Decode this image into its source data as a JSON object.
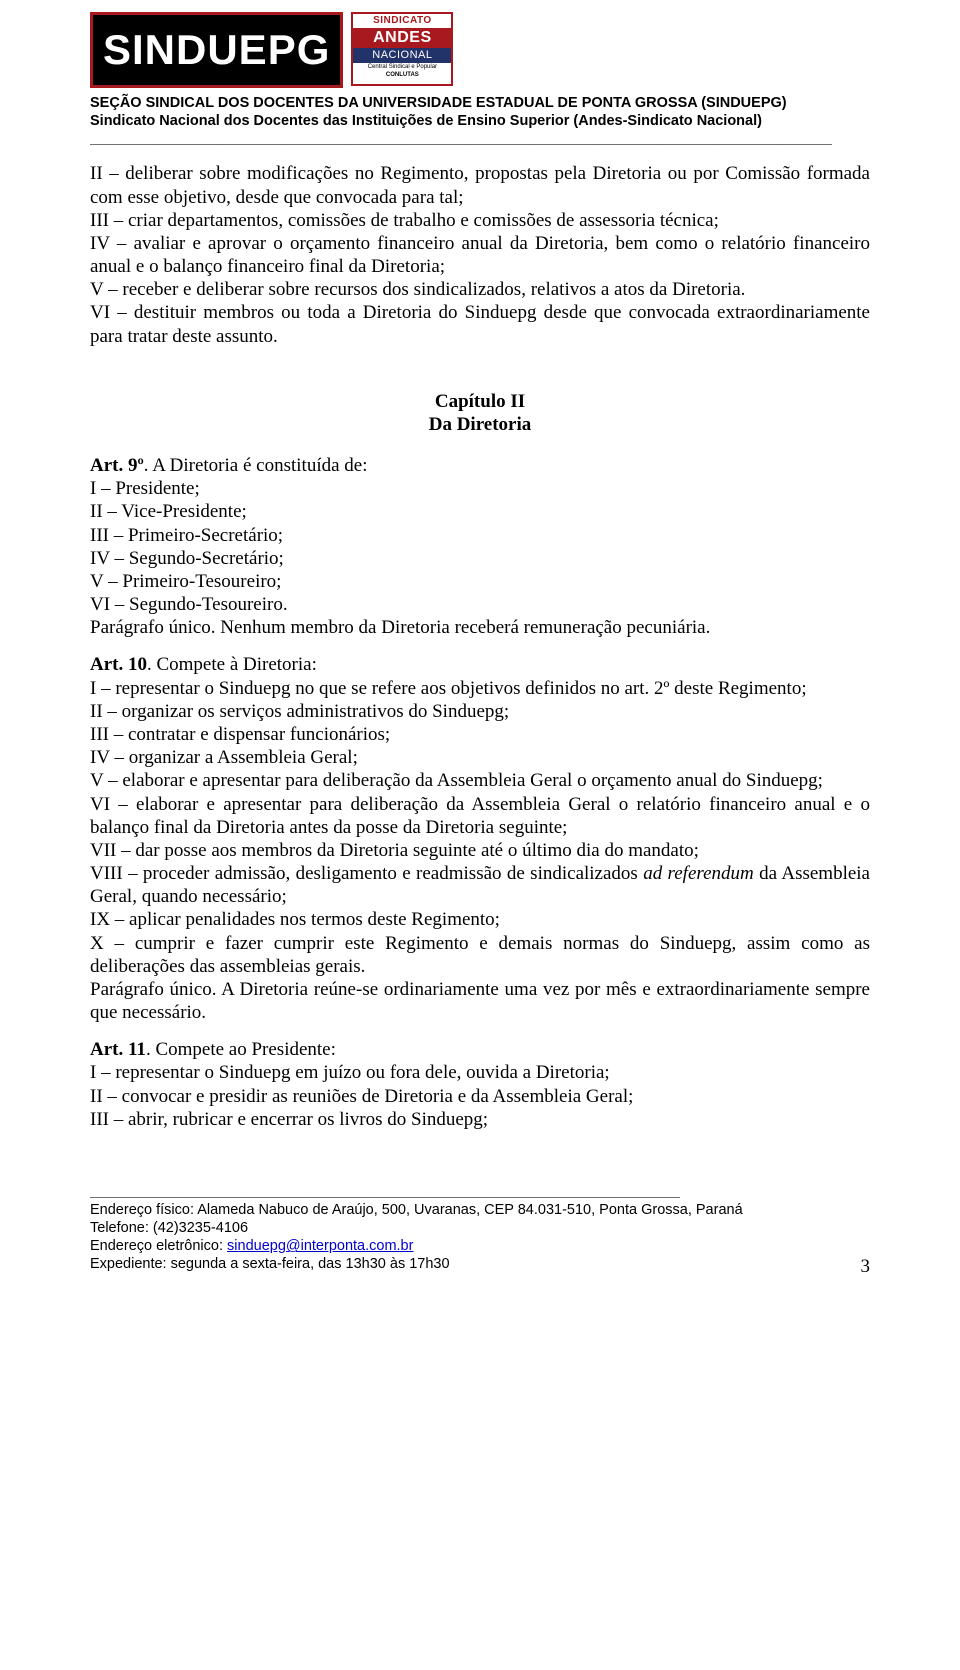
{
  "logos": {
    "sinduepg": "SINDUEPG",
    "andes_top": "SINDICATO",
    "andes_mid": "ANDES",
    "andes_bot": "NACIONAL",
    "andes_sub": "Central Sindical e Popular - CONLUTAS",
    "andes_conlutas": "CONLUTAS"
  },
  "header": {
    "line1": "SEÇÃO SINDICAL DOS DOCENTES DA UNIVERSIDADE ESTADUAL DE PONTA GROSSA (SINDUEPG)",
    "line2": "Sindicato Nacional dos Docentes das Instituições de Ensino Superior (Andes-Sindicato Nacional)",
    "rule": "____________________________________________________________________________________________"
  },
  "section1": {
    "p1": "II – deliberar sobre modificações no Regimento, propostas pela Diretoria ou por Comissão formada com esse objetivo, desde que convocada para tal;",
    "p2": "III – criar departamentos, comissões de trabalho e comissões de assessoria técnica;",
    "p3": "IV – avaliar e aprovar o orçamento financeiro anual da Diretoria, bem como o relatório financeiro anual e o balanço financeiro final da Diretoria;",
    "p4": "V – receber e deliberar sobre recursos dos sindicalizados, relativos a atos da Diretoria.",
    "p5": "VI – destituir membros ou toda a Diretoria do Sinduepg desde que convocada extraordinariamente para tratar deste assunto."
  },
  "chapter": {
    "line1": "Capítulo II",
    "line2": "Da Diretoria"
  },
  "art9": {
    "lead_bold": "Art. 9º",
    "lead_rest": ". A Diretoria é constituída de:",
    "i": "I – Presidente;",
    "ii": "II – Vice-Presidente;",
    "iii": "III – Primeiro-Secretário;",
    "iv": "IV – Segundo-Secretário;",
    "v": "V – Primeiro-Tesoureiro;",
    "vi": "VI – Segundo-Tesoureiro.",
    "paragraf": "Parágrafo único. Nenhum membro da Diretoria receberá remuneração pecuniária."
  },
  "art10": {
    "lead_bold": "Art. 10",
    "lead_rest": ". Compete à Diretoria:",
    "i": "I – representar o Sinduepg no que se refere aos objetivos definidos no art. 2º deste Regimento;",
    "ii": "II – organizar os serviços administrativos do Sinduepg;",
    "iii": "III – contratar e dispensar funcionários;",
    "iv": "IV – organizar a Assembleia Geral;",
    "v": "V – elaborar e apresentar para deliberação da Assembleia Geral o orçamento anual do Sinduepg;",
    "vi": "VI – elaborar e apresentar para deliberação da Assembleia Geral o relatório financeiro anual e o balanço final da Diretoria antes da posse da Diretoria seguinte;",
    "vii": "VII – dar posse aos membros da Diretoria seguinte até o último dia do mandato;",
    "viii_a": "VIII – proceder admissão, desligamento e readmissão de sindicalizados ",
    "viii_it": "ad referendum",
    "viii_b": " da Assembleia Geral, quando necessário;",
    "ix": "IX – aplicar penalidades nos termos deste Regimento;",
    "x": "X – cumprir e fazer cumprir este Regimento e demais normas do Sinduepg, assim como as deliberações das assembleias gerais.",
    "paragraf": "Parágrafo único. A Diretoria reúne-se ordinariamente uma vez por mês e extraordinariamente sempre que necessário."
  },
  "art11": {
    "lead_bold": "Art. 11",
    "lead_rest": ". Compete ao Presidente:",
    "i": "I – representar o Sinduepg em juízo ou fora dele, ouvida a Diretoria;",
    "ii": "II – convocar e presidir as reuniões de Diretoria e da Assembleia Geral;",
    "iii": "III – abrir, rubricar e encerrar os livros do Sinduepg;"
  },
  "footer": {
    "rule": "___________________________________________________________________________",
    "addr": "Endereço físico: Alameda Nabuco de Araújo, 500, Uvaranas, CEP 84.031-510, Ponta Grossa, Paraná",
    "phone": "Telefone: (42)3235-4106",
    "email_label": "Endereço eletrônico: ",
    "email": "sinduepg@interponta.com.br",
    "hours": "Expediente: segunda a sexta-feira, das 13h30 às 17h30",
    "pagenum": "3"
  }
}
